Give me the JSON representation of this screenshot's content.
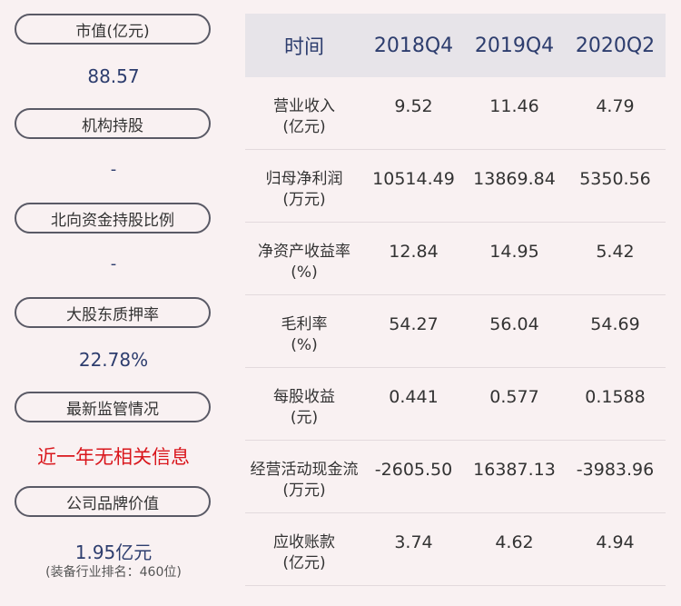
{
  "left_panel": {
    "items": [
      {
        "label": "市值(亿元)",
        "value": "88.57"
      },
      {
        "label": "机构持股",
        "value": "-"
      },
      {
        "label": "北向资金持股比例",
        "value": "-"
      },
      {
        "label": "大股东质押率",
        "value": "22.78%"
      },
      {
        "label": "最新监管情况",
        "value": "近一年无相关信息"
      },
      {
        "label": "公司品牌价值",
        "value": "1.95亿元",
        "note": "(装备行业排名：460位)"
      }
    ]
  },
  "table": {
    "headers": [
      "时间",
      "2018Q4",
      "2019Q4",
      "2020Q2"
    ],
    "rows": [
      {
        "label_1": "营业收入",
        "label_2": "(亿元)",
        "values": [
          "9.52",
          "11.46",
          "4.79"
        ]
      },
      {
        "label_1": "归母净利润",
        "label_2": "(万元)",
        "values": [
          "10514.49",
          "13869.84",
          "5350.56"
        ]
      },
      {
        "label_1": "净资产收益率",
        "label_2": "(%)",
        "values": [
          "12.84",
          "14.95",
          "5.42"
        ]
      },
      {
        "label_1": "毛利率",
        "label_2": "(%)",
        "values": [
          "54.27",
          "56.04",
          "54.69"
        ]
      },
      {
        "label_1": "每股收益",
        "label_2": "(元)",
        "values": [
          "0.441",
          "0.577",
          "0.1588"
        ]
      },
      {
        "label_1": "经营活动现金流",
        "label_2": "(万元)",
        "values": [
          "-2605.50",
          "16387.13",
          "-3983.96"
        ]
      },
      {
        "label_1": "应收账款",
        "label_2": "(亿元)",
        "values": [
          "3.74",
          "4.62",
          "4.94"
        ]
      }
    ]
  },
  "colors": {
    "background": "#f9f1f2",
    "header_bg": "#e7e4e9",
    "value_blue": "#2d3d6e",
    "alert_red": "#d9161c"
  }
}
